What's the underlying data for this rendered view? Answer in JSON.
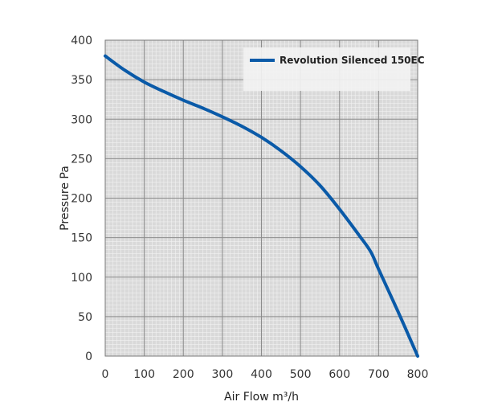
{
  "chart_data": {
    "type": "line",
    "title": "",
    "xlabel": "Air Flow m³/h",
    "ylabel": "Pressure Pa",
    "xlim": [
      0,
      800
    ],
    "ylim": [
      0,
      400
    ],
    "x_ticks": [
      0,
      100,
      200,
      300,
      400,
      500,
      600,
      700,
      800
    ],
    "y_ticks": [
      0,
      50,
      100,
      150,
      200,
      250,
      300,
      350,
      400
    ],
    "grid": true,
    "minor_grid": true,
    "legend_position": "top-right",
    "colors": {
      "plot_background": "#d9d9d9",
      "major_grid": "#8c8c8c",
      "minor_grid": "#f2f2f2",
      "series": "#0a5aa8"
    },
    "series": [
      {
        "name": "Revolution Silenced 150EC",
        "x": [
          0,
          50,
          100,
          150,
          200,
          250,
          300,
          350,
          400,
          450,
          500,
          550,
          600,
          650,
          680,
          700,
          750,
          800
        ],
        "y": [
          380,
          362,
          347,
          335,
          324,
          314,
          303,
          291,
          277,
          260,
          240,
          216,
          186,
          153,
          132,
          110,
          56,
          0
        ]
      }
    ]
  }
}
